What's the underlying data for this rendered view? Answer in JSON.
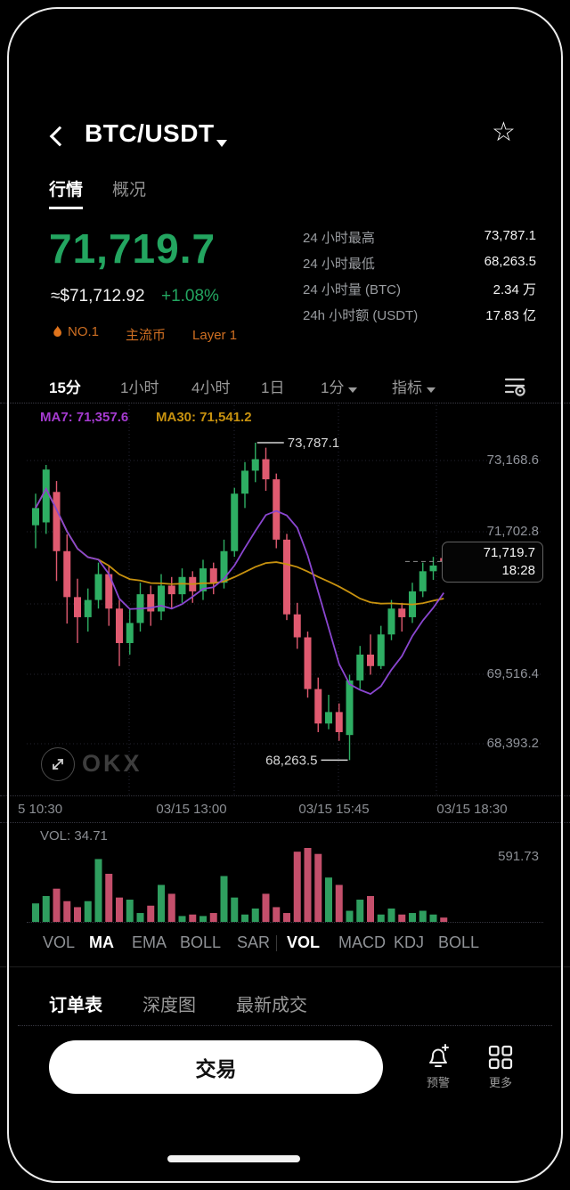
{
  "header": {
    "title": "BTC/USDT"
  },
  "icons": {
    "star": "☆"
  },
  "tabs": [
    {
      "label": "行情",
      "active": true
    },
    {
      "label": "概况",
      "active": false
    }
  ],
  "price": {
    "last": "71,719.7",
    "fiat": "≈$71,712.92",
    "change": "+1.08%"
  },
  "stats": [
    {
      "label": "24 小时最高",
      "value": "73,787.1"
    },
    {
      "label": "24 小时最低",
      "value": "68,263.5"
    },
    {
      "label": "24 小时量 (BTC)",
      "value": "2.34 万"
    },
    {
      "label": "24h 小时额 (USDT)",
      "value": "17.83 亿"
    }
  ],
  "badges": [
    {
      "label": "NO.1",
      "flame": true
    },
    {
      "label": "主流币",
      "flame": false
    },
    {
      "label": "Layer 1",
      "flame": false
    }
  ],
  "timeframes": [
    {
      "label": "15分",
      "active": true,
      "caret": false
    },
    {
      "label": "1小时",
      "active": false,
      "caret": false
    },
    {
      "label": "4小时",
      "active": false,
      "caret": false
    },
    {
      "label": "1日",
      "active": false,
      "caret": false
    },
    {
      "label": "1分",
      "active": false,
      "caret": true
    },
    {
      "label": "指标",
      "active": false,
      "caret": true
    }
  ],
  "chart": {
    "ma7_label": "MA7: 71,357.6",
    "ma30_label": "MA30: 71,541.2",
    "high_label": "73,787.1",
    "low_label": "68,263.5",
    "price_tag": {
      "price": "71,719.7",
      "time": "18:28"
    },
    "y_axis_labels": [
      "73,168.6",
      "71,702.8",
      "69,516.4",
      "68,393.2"
    ],
    "x_axis_labels": [
      "5 10:30",
      "03/15 13:00",
      "03/15 15:45",
      "03/15 18:30"
    ],
    "watermark": "OKX"
  },
  "volume": {
    "label": "VOL: 34.71",
    "max_label": "591.73"
  },
  "indicators": [
    {
      "label": "VOL",
      "active": false
    },
    {
      "label": "MA",
      "active": true
    },
    {
      "label": "EMA",
      "active": false
    },
    {
      "label": "BOLL",
      "active": false
    },
    {
      "label": "SAR",
      "active": false
    },
    {
      "label": "VOL",
      "active": true
    },
    {
      "label": "MACD",
      "active": false
    },
    {
      "label": "KDJ",
      "active": false
    },
    {
      "label": "BOLL",
      "active": false
    }
  ],
  "bottom_tabs": [
    {
      "label": "订单表",
      "active": true
    },
    {
      "label": "深度图",
      "active": false
    },
    {
      "label": "最新成交",
      "active": false
    }
  ],
  "actions": {
    "trade": "交易",
    "alert": "预警",
    "more": "更多"
  },
  "colors": {
    "up": "#2eae63",
    "down": "#e05a70",
    "up_text": "#23a560",
    "vol_up": "#2f9e5f",
    "vol_down": "#c44f6b",
    "ma7": "#8a46d0",
    "ma30": "#c8920f",
    "badge": "#cf6f22"
  },
  "chart_data": {
    "type": "candlestick",
    "timeframe": "15分",
    "high": 73787.1,
    "low": 68263.5,
    "last": 71719.7,
    "last_time": "18:28",
    "ma7": 71357.6,
    "ma30": 71541.2,
    "volume_max": 591.73,
    "volume_last": 34.71,
    "candles": [
      [
        72350,
        72900,
        71950,
        72650
      ],
      [
        72400,
        73400,
        72200,
        73320
      ],
      [
        72930,
        73120,
        71380,
        71900
      ],
      [
        71900,
        72190,
        70640,
        71100
      ],
      [
        71100,
        71420,
        70300,
        70750
      ],
      [
        70750,
        71250,
        70500,
        71050
      ],
      [
        71050,
        71700,
        70900,
        71500
      ],
      [
        71500,
        71650,
        70600,
        70900
      ],
      [
        70900,
        71050,
        69900,
        70300
      ],
      [
        70300,
        70900,
        70100,
        70650
      ],
      [
        70650,
        71350,
        70500,
        71150
      ],
      [
        71150,
        71300,
        70600,
        70850
      ],
      [
        70850,
        71500,
        70700,
        71300
      ],
      [
        71300,
        71450,
        70900,
        71150
      ],
      [
        71150,
        71600,
        71000,
        71450
      ],
      [
        71450,
        71550,
        71000,
        71200
      ],
      [
        71200,
        71750,
        71050,
        71600
      ],
      [
        71600,
        71700,
        71150,
        71350
      ],
      [
        71350,
        72100,
        71250,
        71900
      ],
      [
        71900,
        73000,
        71800,
        72900
      ],
      [
        72900,
        73450,
        72650,
        73300
      ],
      [
        73300,
        73787.1,
        73100,
        73500
      ],
      [
        73500,
        73700,
        72950,
        73150
      ],
      [
        73150,
        73250,
        71950,
        72100
      ],
      [
        72100,
        72200,
        70700,
        70800
      ],
      [
        70800,
        71000,
        70200,
        70400
      ],
      [
        70400,
        70500,
        69350,
        69500
      ],
      [
        69500,
        69700,
        68750,
        68900
      ],
      [
        68900,
        69400,
        68800,
        69100
      ],
      [
        69100,
        69250,
        68600,
        68750
      ],
      [
        68700,
        69750,
        68263.5,
        69650
      ],
      [
        69650,
        70250,
        69500,
        70100
      ],
      [
        70100,
        70450,
        69750,
        69900
      ],
      [
        69900,
        70600,
        69850,
        70450
      ],
      [
        70450,
        71050,
        70350,
        70900
      ],
      [
        70900,
        71000,
        70500,
        70750
      ],
      [
        70750,
        71350,
        70650,
        71200
      ],
      [
        71200,
        71700,
        71100,
        71550
      ],
      [
        71550,
        71800,
        71400,
        71650
      ],
      [
        71780,
        71850,
        71550,
        71719.7
      ]
    ],
    "volumes": [
      148,
      207,
      266,
      166,
      118,
      166,
      503,
      385,
      195,
      178,
      71,
      130,
      296,
      225,
      47,
      59,
      47,
      71,
      367,
      195,
      59,
      107,
      225,
      118,
      71,
      562,
      591.73,
      544,
      355,
      296,
      89,
      178,
      207,
      59,
      107,
      59,
      71,
      89,
      59,
      34.71
    ]
  }
}
